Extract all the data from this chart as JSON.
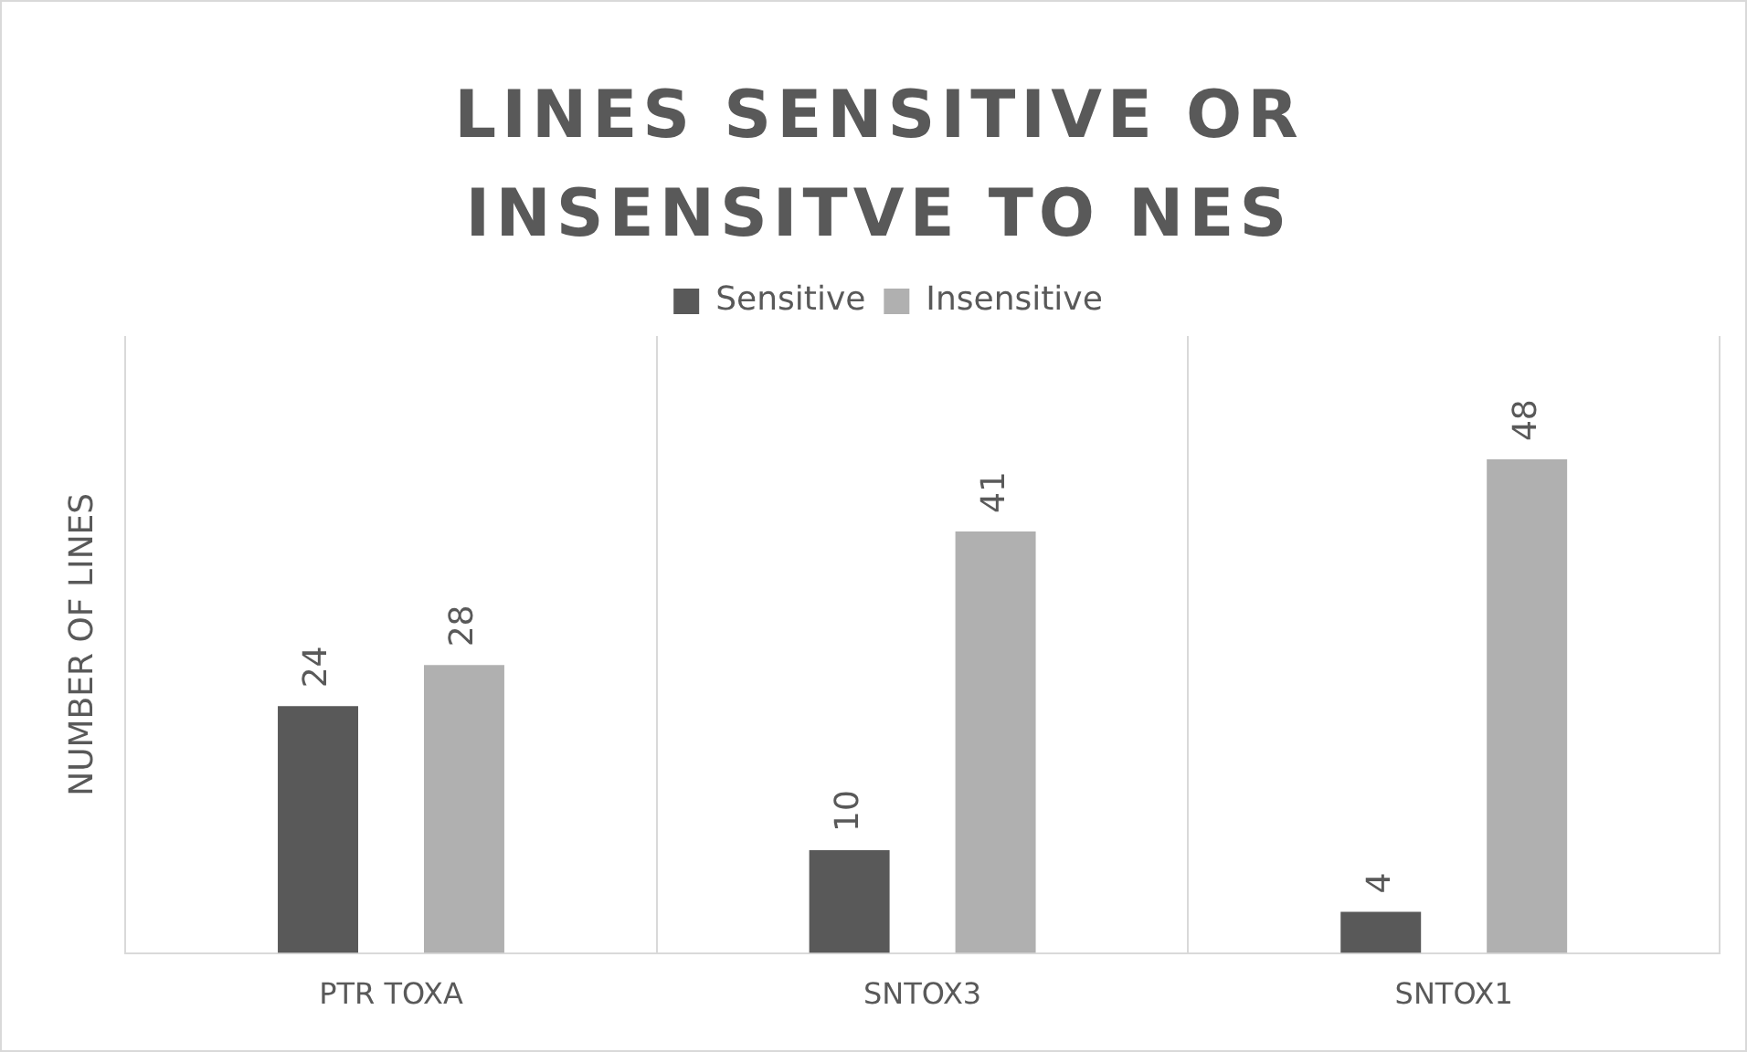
{
  "chart_data": {
    "type": "bar",
    "title": "LINES SENSITIVE OR INSENSITVE TO NES",
    "ylabel": "NUMBER OF LINES",
    "categories": [
      "PTR TOXA",
      "SNTOX3",
      "SNTOX1"
    ],
    "series": [
      {
        "name": "Sensitive",
        "color": "#595959",
        "values": [
          24,
          10,
          4
        ]
      },
      {
        "name": "Insensitive",
        "color": "#b0b0b0",
        "values": [
          28,
          41,
          48
        ]
      }
    ],
    "ylim": [
      0,
      60
    ],
    "tick_labels": "x",
    "grid": "x",
    "legend": "top",
    "data_labels": true
  }
}
